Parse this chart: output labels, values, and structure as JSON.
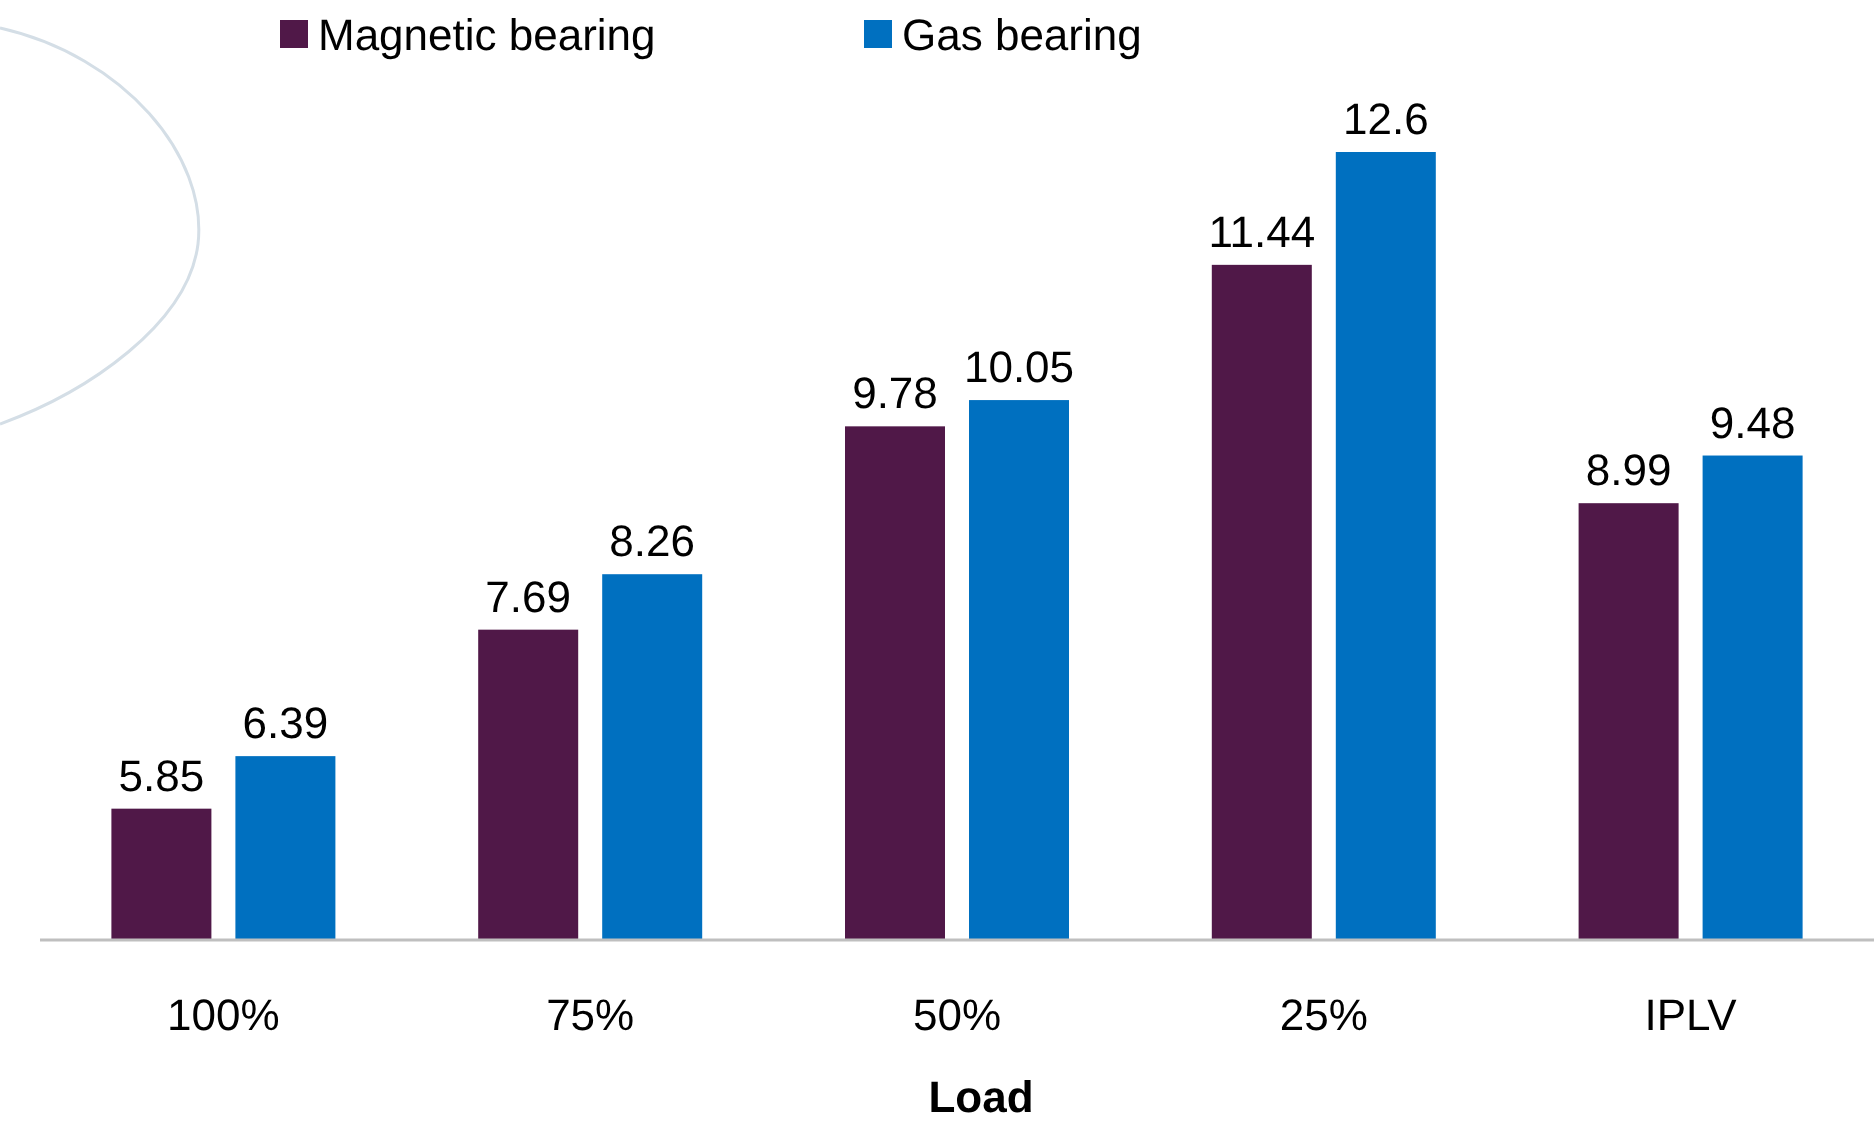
{
  "chart_data": {
    "type": "bar",
    "xlabel": "Load",
    "categories": [
      "100%",
      "75%",
      "50%",
      "25%",
      "IPLV"
    ],
    "series": [
      {
        "name": "Magnetic bearing",
        "color": "#501848",
        "values": [
          5.85,
          7.69,
          9.78,
          11.44,
          8.99
        ]
      },
      {
        "name": "Gas bearing",
        "color": "#0070c0",
        "values": [
          6.39,
          8.26,
          10.05,
          12.6,
          9.48
        ]
      }
    ],
    "ylim": [
      4.5,
      12.6
    ],
    "tick_labels": "x",
    "data_labels": true,
    "legend": "top"
  }
}
